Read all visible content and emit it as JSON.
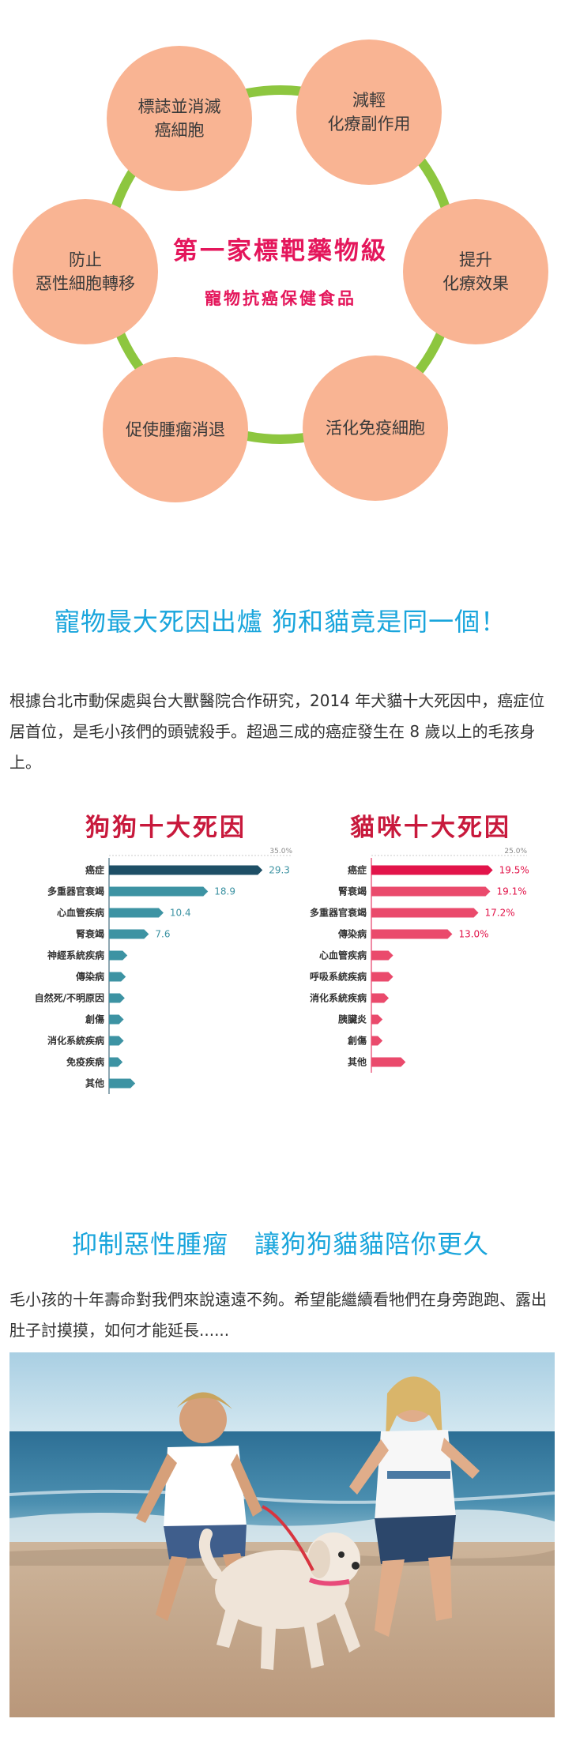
{
  "hero": {
    "center_title": "第一家標靶藥物級",
    "center_subtitle": "寵物抗癌保健食品",
    "bubbles": [
      {
        "line1": "標誌並消滅",
        "line2": "癌細胞"
      },
      {
        "line1": "減輕",
        "line2": "化療副作用"
      },
      {
        "line1": "提升",
        "line2": "化療效果"
      },
      {
        "line1": "活化免疫細胞",
        "line2": ""
      },
      {
        "line1": "促使腫瘤消退",
        "line2": ""
      },
      {
        "line1": "防止",
        "line2": "惡性細胞轉移"
      }
    ],
    "colors": {
      "ring": "#8dc63f",
      "bubble": "#f9b493",
      "title": "#e4165b"
    }
  },
  "section1": {
    "title": "寵物最大死因出爐  狗和貓竟是同一個！",
    "paragraph": "根據台北市動保處與台大獸醫院合作研究，2014 年犬貓十大死因中，癌症位居首位，是毛小孩們的頭號殺手。超過三成的癌症發生在 8 歲以上的毛孩身上。"
  },
  "chart_data": [
    {
      "type": "bar",
      "title": "狗狗十大死因",
      "categories": [
        "癌症",
        "多重器官衰竭",
        "心血管疾病",
        "腎衰竭",
        "神經系統疾病",
        "傳染病",
        "自然死/不明原因",
        "創傷",
        "消化系統疾病",
        "免疫疾病",
        "其他"
      ],
      "values": [
        29.3,
        18.9,
        10.4,
        7.6,
        3.5,
        3.2,
        3.0,
        2.8,
        2.8,
        2.6,
        5.0
      ],
      "value_labels": [
        "29.3",
        "18.9",
        "10.4",
        "7.6",
        "",
        "",
        "",
        "",
        "",
        "",
        ""
      ],
      "axis_max_label": "35.0%",
      "xlim": [
        0,
        35
      ],
      "colors": {
        "first": "#1e4f66",
        "rest": "#3d93a3",
        "label": "#3d93a3"
      }
    },
    {
      "type": "bar",
      "title": "貓咪十大死因",
      "categories": [
        "癌症",
        "腎衰竭",
        "多重器官衰竭",
        "傳染病",
        "心血管疾病",
        "呼吸系統疾病",
        "消化系統疾病",
        "胰臟炎",
        "創傷",
        "其他"
      ],
      "values": [
        19.5,
        19.1,
        17.2,
        13.0,
        3.5,
        3.5,
        2.8,
        1.8,
        1.8,
        5.5
      ],
      "value_labels": [
        "19.5%",
        "19.1%",
        "17.2%",
        "13.0%",
        "",
        "",
        "",
        "",
        "",
        ""
      ],
      "axis_max_label": "25.0%",
      "xlim": [
        0,
        25
      ],
      "colors": {
        "first": "#e2144a",
        "rest": "#ea4a6c",
        "label": "#e2144a"
      }
    }
  ],
  "section2": {
    "title": "抑制惡性腫瘤　讓狗狗貓貓陪你更久",
    "paragraph": "毛小孩的十年壽命對我們來說遠遠不夠。希望能繼續看牠們在身旁跑跑、露出肚子討摸摸，如何才能延長......"
  }
}
